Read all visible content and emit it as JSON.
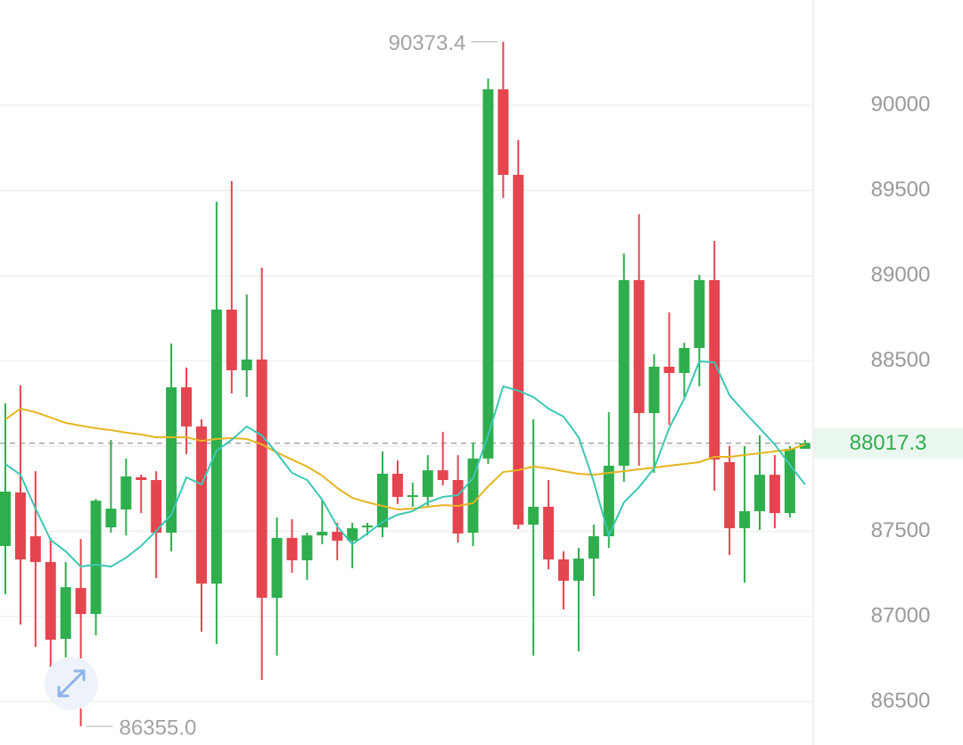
{
  "chart_data": {
    "type": "candlestick",
    "up_color": "#2fae4e",
    "down_color": "#e5454f",
    "open": [
      87414,
      87728,
      87471,
      87320,
      86869,
      87167,
      87015,
      87523,
      87628,
      87817,
      87801,
      87492,
      88345,
      88115,
      87193,
      88801,
      88445,
      88508,
      87110,
      87461,
      87330,
      87476,
      87497,
      87445,
      87523,
      87523,
      87838,
      87702,
      87702,
      87858,
      87801,
      87492,
      87927,
      90094,
      89592,
      87539,
      87644,
      87335,
      87210,
      87340,
      87471,
      87885,
      88974,
      88194,
      88466,
      88429,
      88576,
      88974,
      87906,
      87518,
      87618,
      87832,
      87607,
      87984
    ],
    "high": [
      88251,
      88356,
      87853,
      87460,
      87320,
      87455,
      87690,
      88037,
      87927,
      87833,
      87853,
      88602,
      88461,
      88157,
      89434,
      89555,
      88890,
      89047,
      87581,
      87571,
      87492,
      87686,
      87550,
      87550,
      87550,
      87969,
      87916,
      87785,
      87947,
      88084,
      87947,
      88021,
      90157,
      90373.4,
      89796,
      88157,
      87801,
      87382,
      87403,
      87539,
      88199,
      89131,
      89361,
      88539,
      88785,
      88607,
      89005,
      89204,
      88000,
      88000,
      88063,
      87947,
      88000,
      88037
    ],
    "low": [
      87131,
      86953,
      86822,
      86691,
      86680,
      86355,
      86890,
      87492,
      87476,
      87607,
      87225,
      87382,
      87953,
      86911,
      86838,
      88309,
      88288,
      86628,
      86770,
      87257,
      87215,
      87424,
      87330,
      87283,
      87476,
      87466,
      87660,
      87644,
      87649,
      87770,
      87434,
      87413,
      87895,
      89456,
      87513,
      86770,
      87277,
      87042,
      86796,
      87120,
      87403,
      87791,
      87885,
      87843,
      88126,
      88288,
      88351,
      87738,
      87361,
      87199,
      87508,
      87518,
      87581,
      87984
    ],
    "close": [
      87733,
      87335,
      87320,
      86864,
      87172,
      87015,
      87680,
      87633,
      87822,
      87801,
      87492,
      88345,
      88115,
      87193,
      88801,
      88445,
      88508,
      87110,
      87461,
      87330,
      87476,
      87497,
      87445,
      87518,
      87534,
      87838,
      87702,
      87712,
      87858,
      87801,
      87487,
      87927,
      90094,
      89592,
      87539,
      87644,
      87335,
      87210,
      87340,
      87471,
      87885,
      88974,
      88194,
      88466,
      88429,
      88576,
      88974,
      87921,
      87518,
      87618,
      87832,
      87607,
      87984,
      88017.3
    ],
    "ma": [
      {
        "color": "#e6b422",
        "values": [
          88157,
          88220,
          88199,
          88168,
          88136,
          88120,
          88105,
          88094,
          88079,
          88068,
          88052,
          88052,
          88052,
          88031,
          88042,
          88047,
          88042,
          88010,
          87963,
          87921,
          87880,
          87827,
          87754,
          87696,
          87670,
          87649,
          87628,
          87633,
          87644,
          87654,
          87649,
          87665,
          87764,
          87848,
          87859,
          87880,
          87869,
          87853,
          87838,
          87832,
          87843,
          87853,
          87864,
          87874,
          87885,
          87895,
          87906,
          87937,
          87937,
          87948,
          87958,
          87969,
          87979,
          88010
        ]
      },
      {
        "color": "#3cc7b4",
        "values": [
          87895,
          87832,
          87633,
          87450,
          87382,
          87293,
          87304,
          87293,
          87345,
          87414,
          87503,
          87597,
          87817,
          87775,
          87974,
          88037,
          88115,
          88063,
          87958,
          87843,
          87801,
          87686,
          87529,
          87424,
          87487,
          87555,
          87597,
          87618,
          87670,
          87702,
          87712,
          87812,
          88063,
          88351,
          88325,
          88288,
          88220,
          88173,
          88052,
          87791,
          87476,
          87670,
          87759,
          87869,
          88105,
          88278,
          88497,
          88492,
          88298,
          88199,
          88105,
          88010,
          87890,
          87775
        ]
      }
    ],
    "ylim": [
      86246,
      90618
    ],
    "yticks": [
      86500,
      87000,
      87500,
      88000,
      88500,
      89000,
      89500,
      90000
    ],
    "ytick_labels_shown": [
      86500,
      87000,
      87500,
      88500,
      89000,
      89500,
      90000
    ],
    "grid": true,
    "last_price": {
      "value": 88017.3,
      "label": "88017.3"
    },
    "annotations": [
      {
        "value": 90373.4,
        "label": "90373.4"
      },
      {
        "value": 86355,
        "label": "86355.0"
      }
    ]
  }
}
